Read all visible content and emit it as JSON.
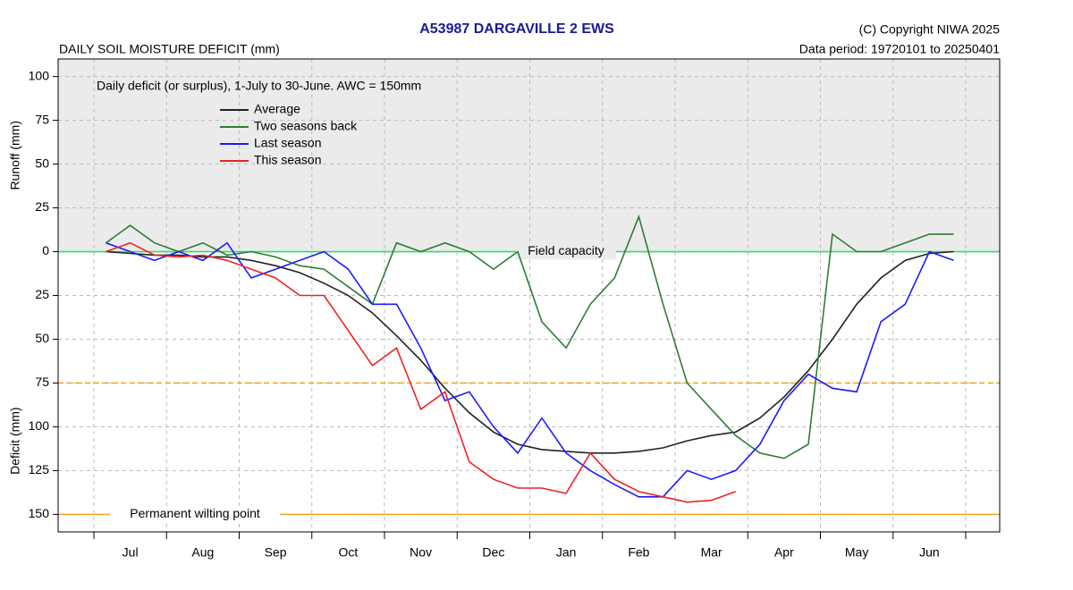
{
  "chart_data": {
    "type": "line",
    "title": "A53987  DARGAVILLE 2 EWS",
    "subtitle": "DAILY SOIL MOISTURE DEFICIT (mm)",
    "copyright": "(C) Copyright NIWA  2025",
    "data_period": "Data period:  19720101  to  20250401",
    "note": "Daily deficit (or surplus), 1-July to 30-June.  AWC = 150mm",
    "ylabel_top": "Runoff (mm)",
    "ylabel_bottom": "Deficit (mm)",
    "categories": [
      null,
      "Jul",
      null,
      null,
      "Aug",
      null,
      null,
      "Sep",
      null,
      null,
      "Oct",
      null,
      null,
      "Nov",
      null,
      null,
      "Dec",
      null,
      null,
      "Jan",
      null,
      null,
      "Feb",
      null,
      null,
      "Mar",
      null,
      null,
      "Apr",
      null,
      null,
      "May",
      null,
      null,
      "Jun",
      null
    ],
    "ylim": [
      -160,
      110
    ],
    "yticks": [
      100,
      75,
      50,
      25,
      0,
      {
        "value": -25,
        "label": "25"
      },
      {
        "value": -50,
        "label": "50"
      },
      {
        "value": -75,
        "label": "75"
      },
      {
        "value": -100,
        "label": "100"
      },
      {
        "value": -125,
        "label": "125"
      },
      {
        "value": -150,
        "label": "150"
      }
    ],
    "grid": true,
    "shade_color": "#ebebeb",
    "legend": "upper left",
    "reference_lines": [
      {
        "value": 0,
        "label": "Field capacity",
        "color": "#33dd66",
        "style": "solid"
      },
      {
        "value": -75,
        "color": "#f5a623",
        "style": "dashed"
      },
      {
        "value": -150,
        "label": "Permanent wilting point",
        "color": "#f5a623",
        "style": "solid"
      }
    ],
    "series": [
      {
        "name": "Average",
        "color": "#222222",
        "values": [
          0,
          -1,
          -2,
          -2,
          -3,
          -3,
          -5,
          -8,
          -12,
          -18,
          -25,
          -35,
          -48,
          -62,
          -78,
          -92,
          -103,
          -110,
          -113,
          -114,
          -115,
          -115,
          -114,
          -112,
          -108,
          -105,
          -103,
          -95,
          -83,
          -68,
          -50,
          -30,
          -15,
          -5,
          -1,
          0
        ]
      },
      {
        "name": "Two seasons back",
        "color": "#2e7d32",
        "values": [
          5,
          15,
          5,
          0,
          5,
          -2,
          0,
          -3,
          -8,
          -10,
          -20,
          -30,
          5,
          0,
          5,
          0,
          -10,
          0,
          -40,
          -55,
          -30,
          -15,
          20,
          -30,
          -75,
          -90,
          -105,
          -115,
          -118,
          -110,
          10,
          0,
          0,
          5,
          10,
          10
        ]
      },
      {
        "name": "Last season",
        "color": "#1a1aff",
        "values": [
          5,
          0,
          -5,
          0,
          -5,
          5,
          -15,
          -10,
          -5,
          0,
          -10,
          -30,
          -30,
          -55,
          -85,
          -80,
          -100,
          -115,
          -95,
          -115,
          -125,
          -133,
          -140,
          -140,
          -125,
          -130,
          -125,
          -110,
          -85,
          -70,
          -78,
          -80,
          -40,
          -30,
          0,
          -5
        ]
      },
      {
        "name": "This season",
        "color": "#ee2222",
        "values": [
          0,
          5,
          -2,
          -3,
          -2,
          -5,
          -10,
          -15,
          -25,
          -25,
          -45,
          -65,
          -55,
          -90,
          -80,
          -120,
          -130,
          -135,
          -135,
          -138,
          -115,
          -130,
          -137,
          -140,
          -143,
          -142,
          -137,
          null,
          null,
          null,
          null,
          null,
          null,
          null,
          null,
          null
        ]
      }
    ]
  }
}
